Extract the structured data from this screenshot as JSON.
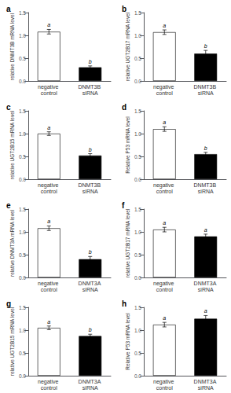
{
  "chart_data": [
    {
      "type": "bar",
      "title": "a",
      "ylabel": "relative DNMT3B mRNA level",
      "categories": [
        "negative control",
        "DNMT3B siRNA"
      ],
      "values": [
        1.08,
        0.3
      ],
      "errors": [
        0.05,
        0.03
      ],
      "colors": [
        "white",
        "black"
      ],
      "annotations": [
        "a",
        "b"
      ],
      "ylim": [
        0,
        1.5
      ],
      "yticks": [
        {
          "value": 0,
          "label": "0.0"
        },
        0.5,
        {
          "value": 1,
          "label": "1.0"
        },
        1.5
      ],
      "grid": false
    },
    {
      "type": "bar",
      "title": "b",
      "ylabel": "relative UGT2B17 mRNA level",
      "categories": [
        "negative control",
        "DNMT3B siRNA"
      ],
      "values": [
        1.07,
        0.6
      ],
      "errors": [
        0.05,
        0.07
      ],
      "colors": [
        "white",
        "black"
      ],
      "annotations": [
        "a",
        "b"
      ],
      "ylim": [
        0,
        1.5
      ],
      "yticks": [
        {
          "value": 0,
          "label": "0.0"
        },
        0.5,
        {
          "value": 1,
          "label": "1.0"
        },
        1.5
      ],
      "grid": false
    },
    {
      "type": "bar",
      "title": "c",
      "ylabel": "relative UGT2B15 mRNA level",
      "categories": [
        "negative control",
        "DNMT3B siRNA"
      ],
      "values": [
        1.0,
        0.52
      ],
      "errors": [
        0.04,
        0.04
      ],
      "colors": [
        "white",
        "black"
      ],
      "annotations": [
        "a",
        "b"
      ],
      "ylim": [
        0,
        1.5
      ],
      "yticks": [
        {
          "value": 0,
          "label": "0.0"
        },
        0.5,
        {
          "value": 1,
          "label": "1.0"
        },
        1.5
      ],
      "grid": false
    },
    {
      "type": "bar",
      "title": "d",
      "ylabel": "Relative P53 mRNA level",
      "categories": [
        "negative control",
        "DNMT3B siRNA"
      ],
      "values": [
        1.1,
        0.55
      ],
      "errors": [
        0.05,
        0.04
      ],
      "colors": [
        "white",
        "black"
      ],
      "annotations": [
        "a",
        "b"
      ],
      "ylim": [
        0,
        1.5
      ],
      "yticks": [
        {
          "value": 0,
          "label": "0.0"
        },
        0.5,
        {
          "value": 1,
          "label": "1.0"
        },
        1.5
      ],
      "grid": false
    },
    {
      "type": "bar",
      "title": "e",
      "ylabel": "relative DNMT3A mRNA level",
      "categories": [
        "negative control",
        "DNMT3A siRNA"
      ],
      "values": [
        1.08,
        0.4
      ],
      "errors": [
        0.05,
        0.06
      ],
      "colors": [
        "white",
        "black"
      ],
      "annotations": [
        "a",
        "b"
      ],
      "ylim": [
        0,
        1.5
      ],
      "yticks": [
        {
          "value": 0,
          "label": "0.0"
        },
        0.5,
        {
          "value": 1,
          "label": "1.0"
        },
        1.5
      ],
      "grid": false
    },
    {
      "type": "bar",
      "title": "f",
      "ylabel": "relative UGT2B17 mRNA level",
      "categories": [
        "negative control",
        "DNMT3A siRNA"
      ],
      "values": [
        1.05,
        0.9
      ],
      "errors": [
        0.05,
        0.05
      ],
      "colors": [
        "white",
        "black"
      ],
      "annotations": [
        "a",
        "a"
      ],
      "ylim": [
        0,
        1.5
      ],
      "yticks": [
        {
          "value": 0,
          "label": "0.0"
        },
        0.5,
        {
          "value": 1,
          "label": "1.0"
        },
        1.5
      ],
      "grid": false
    },
    {
      "type": "bar",
      "title": "g",
      "ylabel": "relative UGT2B15 mRNA level",
      "categories": [
        "negative control",
        "DNMT3A siRNA"
      ],
      "values": [
        1.05,
        0.87
      ],
      "errors": [
        0.04,
        0.04
      ],
      "colors": [
        "white",
        "black"
      ],
      "annotations": [
        "a",
        "b"
      ],
      "ylim": [
        0,
        1.5
      ],
      "yticks": [
        {
          "value": 0,
          "label": "0.0"
        },
        0.5,
        {
          "value": 1,
          "label": "1.0"
        },
        1.5
      ],
      "grid": false
    },
    {
      "type": "bar",
      "title": "h",
      "ylabel": "Relative P53 mRNA level",
      "categories": [
        "negative control",
        "DNMT3A siRNA"
      ],
      "values": [
        1.12,
        1.25
      ],
      "errors": [
        0.05,
        0.07
      ],
      "colors": [
        "white",
        "black"
      ],
      "annotations": [
        "a",
        "a"
      ],
      "ylim": [
        0,
        1.5
      ],
      "yticks": [
        {
          "value": 0,
          "label": "0.0"
        },
        0.5,
        {
          "value": 1,
          "label": "1.0"
        },
        1.5
      ],
      "grid": false
    }
  ]
}
